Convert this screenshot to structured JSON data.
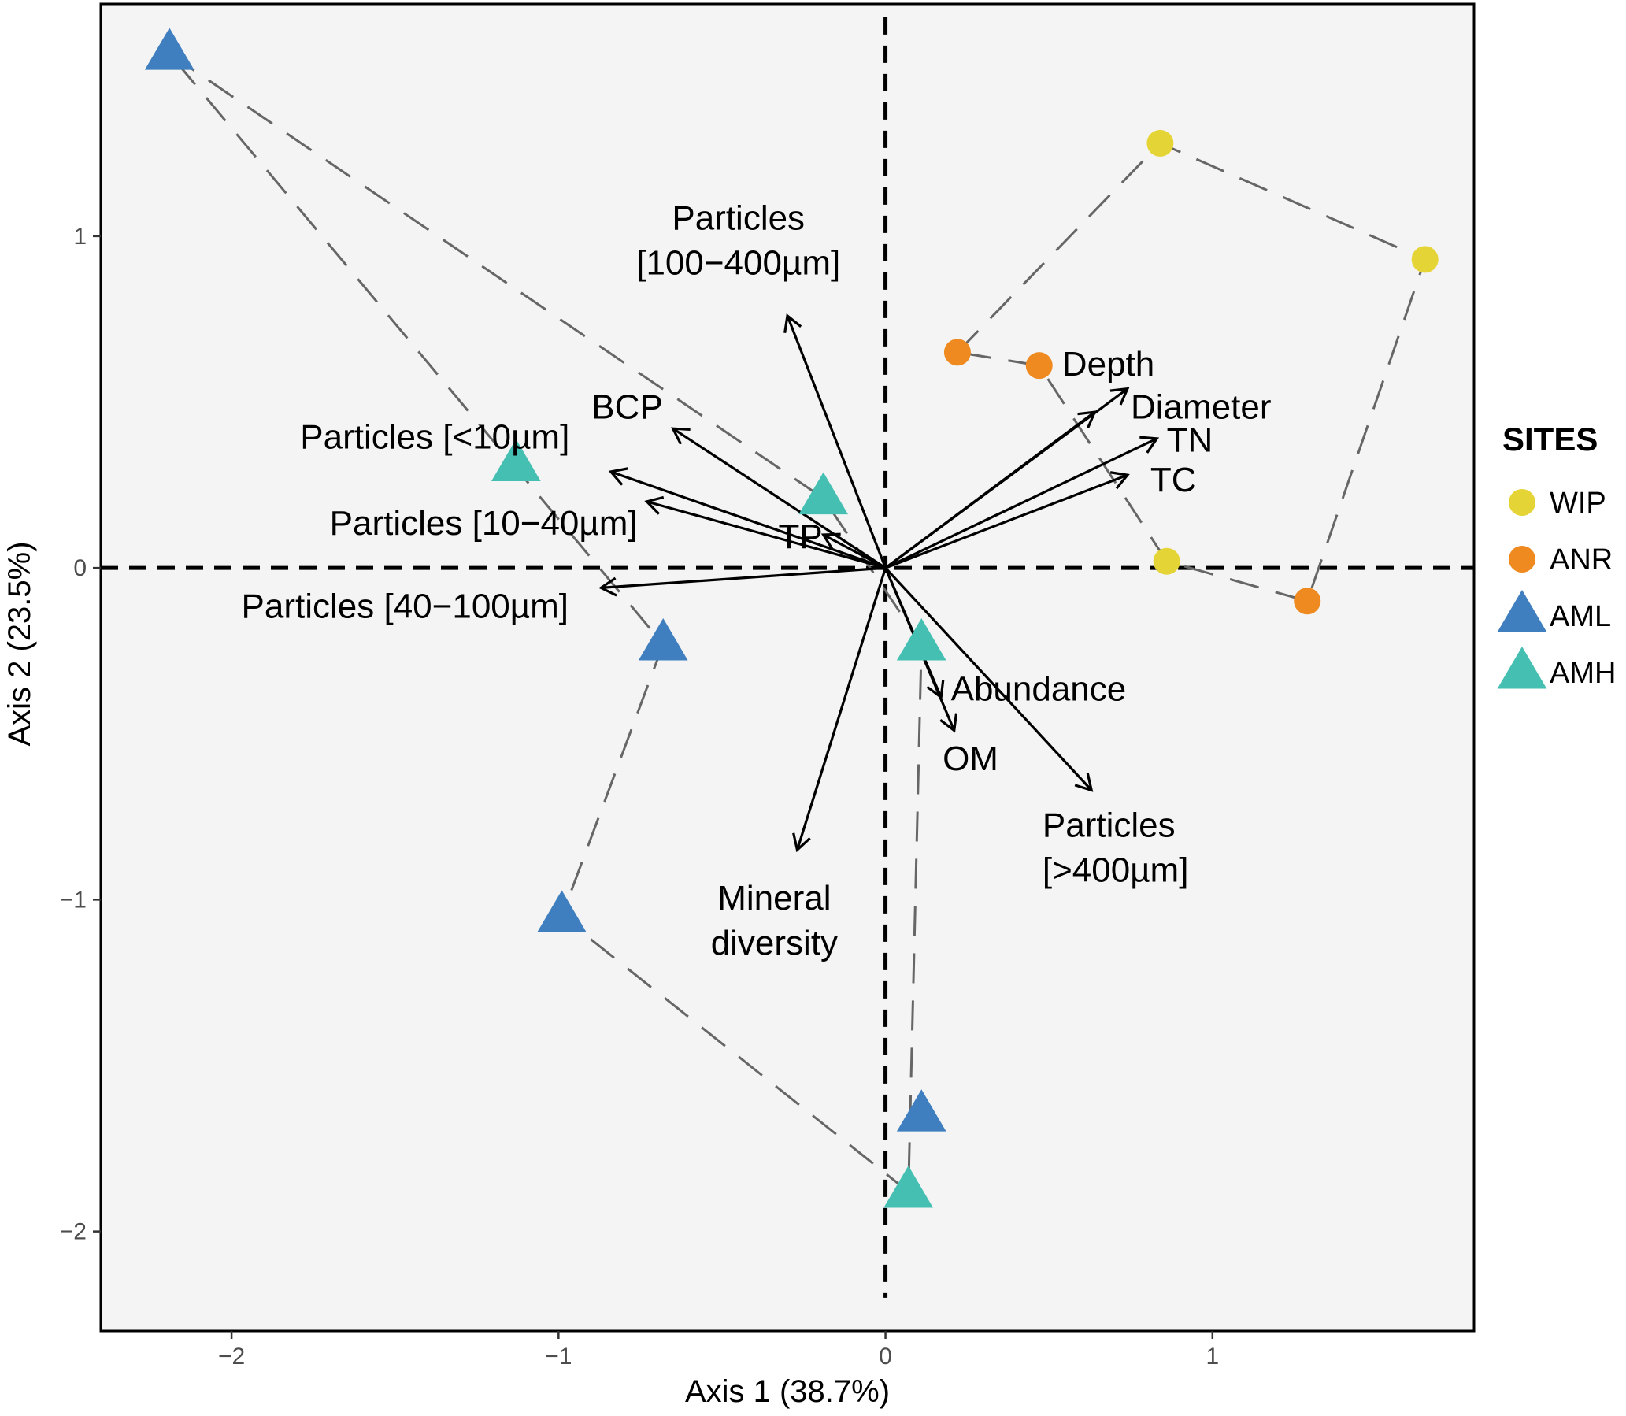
{
  "chart_data": {
    "type": "scatter",
    "subtype": "ordination-biplot",
    "xlabel": "Axis 1 (38.7%)",
    "ylabel": "Axis 2 (23.5%)",
    "xlim": [
      -2.4,
      1.8
    ],
    "ylim": [
      -2.3,
      1.7
    ],
    "x_ticks": [
      {
        "value": -2,
        "label": "−2"
      },
      {
        "value": -1,
        "label": "−1"
      },
      {
        "value": 0,
        "label": "0"
      },
      {
        "value": 1,
        "label": "1"
      }
    ],
    "y_ticks": [
      {
        "value": -2,
        "label": "−2"
      },
      {
        "value": -1,
        "label": "−1"
      },
      {
        "value": 0,
        "label": "0"
      },
      {
        "value": 1,
        "label": "1"
      }
    ],
    "grid": false,
    "reference_lines": {
      "x": 0,
      "y": 0,
      "style": "dashed"
    },
    "legend": {
      "title": "SITES",
      "placement": "right",
      "entries": [
        {
          "name": "WIP",
          "shape": "circle",
          "color": "#e5d435"
        },
        {
          "name": "ANR",
          "shape": "circle",
          "color": "#ee8a1f"
        },
        {
          "name": "AML",
          "shape": "triangle",
          "color": "#3f7fbf"
        },
        {
          "name": "AMH",
          "shape": "triangle",
          "color": "#45bfb2"
        }
      ]
    },
    "series": [
      {
        "name": "WIP",
        "points": [
          [
            0.84,
            1.28
          ],
          [
            1.65,
            0.93
          ],
          [
            0.86,
            0.02
          ]
        ]
      },
      {
        "name": "ANR",
        "points": [
          [
            0.22,
            0.65
          ],
          [
            0.47,
            0.61
          ],
          [
            1.29,
            -0.1
          ]
        ]
      },
      {
        "name": "AML",
        "points": [
          [
            -2.19,
            1.55
          ],
          [
            -0.68,
            -0.23
          ],
          [
            -0.99,
            -1.05
          ],
          [
            0.11,
            -1.65
          ]
        ]
      },
      {
        "name": "AMH",
        "points": [
          [
            -1.13,
            0.31
          ],
          [
            -0.19,
            0.21
          ],
          [
            0.11,
            -0.23
          ],
          [
            0.07,
            -1.88
          ]
        ]
      }
    ],
    "hulls": [
      {
        "name": "WIP+ANR",
        "points": [
          [
            0.22,
            0.65
          ],
          [
            0.84,
            1.28
          ],
          [
            1.65,
            0.93
          ],
          [
            1.29,
            -0.1
          ],
          [
            0.86,
            0.02
          ],
          [
            0.47,
            0.61
          ],
          [
            0.22,
            0.65
          ]
        ]
      },
      {
        "name": "AML+AMH",
        "points": [
          [
            -2.19,
            1.55
          ],
          [
            -0.19,
            0.21
          ],
          [
            0.11,
            -0.23
          ],
          [
            0.07,
            -1.88
          ],
          [
            -0.99,
            -1.05
          ],
          [
            -0.68,
            -0.23
          ],
          [
            -2.19,
            1.55
          ]
        ]
      }
    ],
    "vectors": [
      {
        "name": "Particles [100−400µm]",
        "label_lines": [
          "Particles",
          "[100−400µm]"
        ],
        "x": -0.3,
        "y": 0.76
      },
      {
        "name": "BCP",
        "label_lines": [
          "BCP"
        ],
        "x": -0.65,
        "y": 0.42
      },
      {
        "name": "Particles [<10µm]",
        "label_lines": [
          "Particles [<10µm]"
        ],
        "x": -0.84,
        "y": 0.29
      },
      {
        "name": "Particles [10−40µm]",
        "label_lines": [
          "Particles [10−40µm]"
        ],
        "x": -0.73,
        "y": 0.2
      },
      {
        "name": "TP",
        "label_lines": [
          "TP"
        ],
        "x": -0.19,
        "y": 0.1
      },
      {
        "name": "Particles [40−100µm]",
        "label_lines": [
          "Particles [40−100µm]"
        ],
        "x": -0.87,
        "y": -0.06
      },
      {
        "name": "Depth",
        "label_lines": [
          "Depth"
        ],
        "x": 0.74,
        "y": 0.54
      },
      {
        "name": "Diameter",
        "label_lines": [
          "Diameter"
        ],
        "x": 0.64,
        "y": 0.47
      },
      {
        "name": "TN",
        "label_lines": [
          "TN"
        ],
        "x": 0.83,
        "y": 0.39
      },
      {
        "name": "TC",
        "label_lines": [
          "TC"
        ],
        "x": 0.74,
        "y": 0.28
      },
      {
        "name": "Abundance",
        "label_lines": [
          "Abundance"
        ],
        "x": 0.17,
        "y": -0.39
      },
      {
        "name": "OM",
        "label_lines": [
          "OM"
        ],
        "x": 0.21,
        "y": -0.49
      },
      {
        "name": "Particles [>400µm]",
        "label_lines": [
          "Particles",
          "[>400µm]"
        ],
        "x": 0.63,
        "y": -0.67
      },
      {
        "name": "Mineral diversity",
        "label_lines": [
          "Mineral",
          "diversity"
        ],
        "x": -0.27,
        "y": -0.85
      }
    ]
  }
}
